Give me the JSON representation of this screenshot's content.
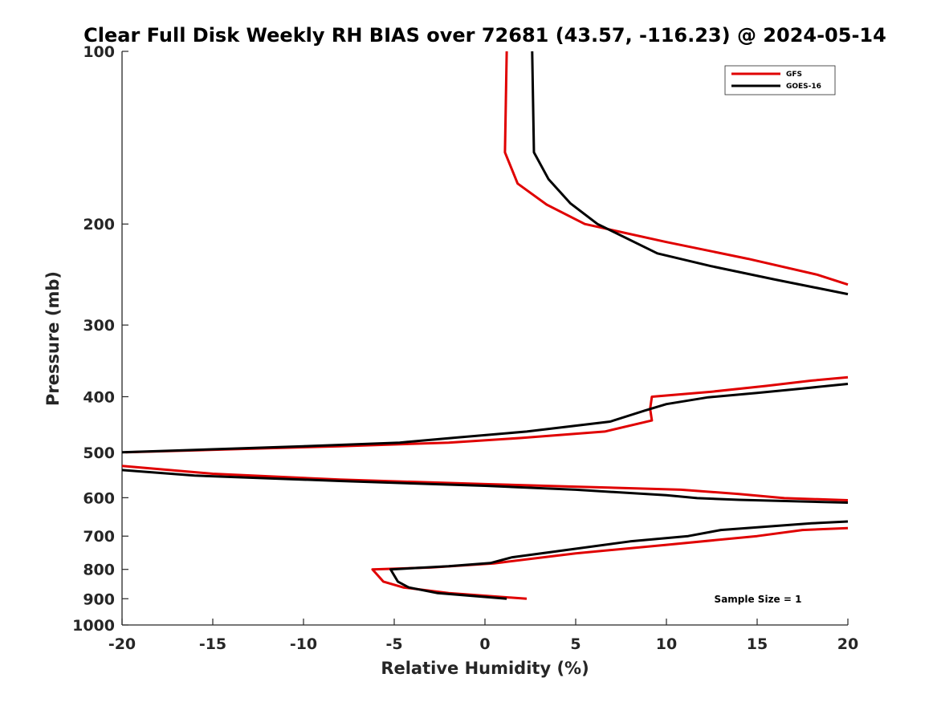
{
  "chart_data": {
    "type": "line",
    "title": "Clear Full Disk Weekly RH BIAS over 72681 (43.57, -116.23) @ 2024-05-14",
    "xlabel": "Relative Humidity (%)",
    "ylabel": "Pressure (mb)",
    "xlim": [
      -20,
      20
    ],
    "ylim": [
      100,
      1000
    ],
    "y_scale": "log",
    "y_reversed": true,
    "x_ticks": [
      "-20",
      "-15",
      "-10",
      "-5",
      "0",
      "5",
      "10",
      "15",
      "20"
    ],
    "y_ticks": [
      "100",
      "200",
      "300",
      "400",
      "500",
      "600",
      "700",
      "800",
      "900",
      "1000"
    ],
    "grid": false,
    "legend": "top-right",
    "annotation": "Sample Size = 1",
    "series": [
      {
        "name": "GFS",
        "color": "#e00000",
        "points": [
          [
            1.2,
            100
          ],
          [
            1.1,
            150
          ],
          [
            1.8,
            170
          ],
          [
            3.4,
            185
          ],
          [
            5.5,
            200
          ],
          [
            10.0,
            215
          ],
          [
            14.5,
            230
          ],
          [
            18.3,
            245
          ],
          [
            20.0,
            255
          ],
          [
            null,
            null
          ],
          [
            20.0,
            370
          ],
          [
            18.0,
            375
          ],
          [
            15.5,
            383
          ],
          [
            12.5,
            392
          ],
          [
            9.2,
            400
          ],
          [
            9.1,
            420
          ],
          [
            9.2,
            440
          ],
          [
            6.6,
            460
          ],
          [
            2.0,
            472
          ],
          [
            -2.0,
            481
          ],
          [
            -8.0,
            488
          ],
          [
            -14.0,
            494
          ],
          [
            -19.8,
            500
          ],
          [
            null,
            null
          ],
          [
            -20.0,
            528
          ],
          [
            -15.0,
            545
          ],
          [
            -8.0,
            558
          ],
          [
            0.0,
            568
          ],
          [
            5.0,
            574
          ],
          [
            10.8,
            581
          ],
          [
            14.0,
            591
          ],
          [
            16.5,
            601
          ],
          [
            20.0,
            606
          ],
          [
            null,
            null
          ],
          [
            20.0,
            678
          ],
          [
            17.5,
            683
          ],
          [
            15.0,
            700
          ],
          [
            10.0,
            725
          ],
          [
            5.0,
            750
          ],
          [
            0.5,
            781
          ],
          [
            -3.0,
            794
          ],
          [
            -6.2,
            800
          ],
          [
            -6.0,
            813
          ],
          [
            -5.6,
            840
          ],
          [
            -4.5,
            860
          ],
          [
            -2.0,
            880
          ],
          [
            2.3,
            900
          ]
        ]
      },
      {
        "name": "GOES-16",
        "color": "#000000",
        "points": [
          [
            2.6,
            100
          ],
          [
            2.7,
            150
          ],
          [
            3.5,
            167
          ],
          [
            4.7,
            184
          ],
          [
            6.2,
            200
          ],
          [
            9.5,
            225
          ],
          [
            12.5,
            237
          ],
          [
            16.0,
            250
          ],
          [
            20.0,
            265
          ],
          [
            null,
            null
          ],
          [
            20.0,
            380
          ],
          [
            17.5,
            387
          ],
          [
            15.0,
            394
          ],
          [
            12.3,
            401
          ],
          [
            10.0,
            412
          ],
          [
            8.8,
            423
          ],
          [
            6.9,
            442
          ],
          [
            2.3,
            460
          ],
          [
            -1.5,
            471
          ],
          [
            -4.7,
            481
          ],
          [
            -10.0,
            488
          ],
          [
            -15.0,
            494
          ],
          [
            -20.0,
            500
          ],
          [
            null,
            null
          ],
          [
            -20.0,
            537
          ],
          [
            -16.0,
            549
          ],
          [
            -8.0,
            561
          ],
          [
            0.0,
            572
          ],
          [
            5.0,
            581
          ],
          [
            10.0,
            594
          ],
          [
            11.7,
            601
          ],
          [
            14.0,
            605
          ],
          [
            20.0,
            612
          ],
          [
            null,
            null
          ],
          [
            20.0,
            660
          ],
          [
            18.0,
            665
          ],
          [
            13.0,
            683
          ],
          [
            11.2,
            700
          ],
          [
            8.0,
            715
          ],
          [
            4.5,
            740
          ],
          [
            1.5,
            762
          ],
          [
            0.3,
            780
          ],
          [
            -2.0,
            790
          ],
          [
            -5.2,
            800
          ],
          [
            -5.0,
            820
          ],
          [
            -4.8,
            840
          ],
          [
            -4.2,
            860
          ],
          [
            -2.6,
            880
          ],
          [
            1.2,
            900
          ]
        ]
      }
    ]
  }
}
